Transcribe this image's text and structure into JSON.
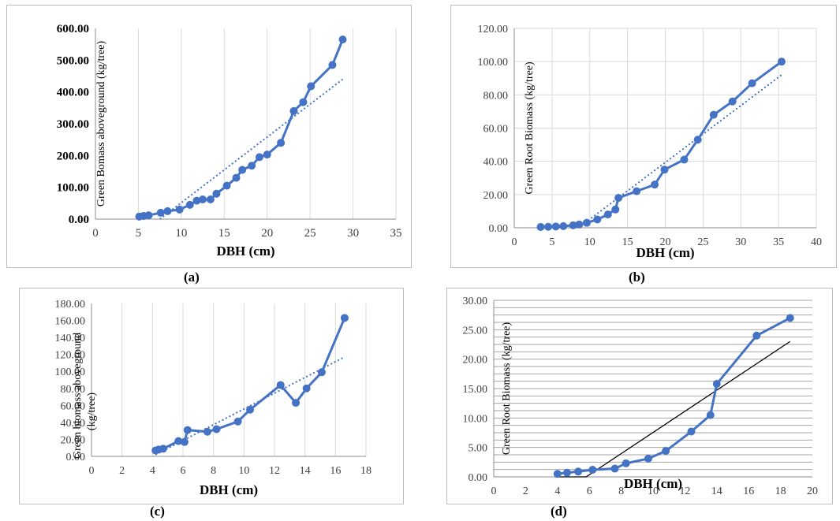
{
  "chart_data": [
    {
      "type": "scatter",
      "caption": "(a)",
      "xlabel": "DBH (cm)",
      "ylabel": "Green Bomass aboveground (kg/tree)",
      "xlim": [
        0,
        35
      ],
      "ylim": [
        0,
        600
      ],
      "xticks": [
        "0",
        "5",
        "10",
        "15",
        "20",
        "25",
        "30",
        "35"
      ],
      "yticks": [
        "0.00",
        "100.00",
        "200.00",
        "300.00",
        "400.00",
        "500.00",
        "600.00"
      ],
      "grid": "vertical",
      "series": [
        {
          "x": [
            5.1,
            5.6,
            6.2,
            7.6,
            8.4,
            9.8,
            11.0,
            11.8,
            12.5,
            13.4,
            14.1,
            15.3,
            16.4,
            17.1,
            18.2,
            19.1,
            20.0,
            21.6,
            23.1,
            24.2,
            25.1,
            27.6,
            28.8
          ],
          "y": [
            8,
            10,
            12,
            20,
            25,
            30,
            45,
            58,
            62,
            62,
            80,
            105,
            130,
            155,
            168,
            195,
            203,
            240,
            340,
            368,
            418,
            485,
            565
          ]
        }
      ],
      "trendline": {
        "x": [
          7.5,
          28.8
        ],
        "y": [
          0,
          440
        ]
      }
    },
    {
      "type": "scatter",
      "caption": "(b)",
      "xlabel": "DBH (cm)",
      "ylabel": "Green Root Biomass (kg/tree)",
      "xlim": [
        0,
        40
      ],
      "ylim": [
        0,
        120
      ],
      "xticks": [
        "0",
        "5",
        "10",
        "15",
        "20",
        "25",
        "30",
        "35",
        "40"
      ],
      "yticks": [
        "0.00",
        "20.00",
        "40.00",
        "60.00",
        "80.00",
        "100.00",
        "120.00"
      ],
      "grid": "both",
      "series": [
        {
          "x": [
            3.5,
            4.5,
            5.5,
            6.5,
            7.8,
            8.6,
            9.6,
            11.0,
            12.4,
            13.4,
            13.8,
            16.2,
            18.6,
            19.9,
            22.5,
            24.3,
            26.4,
            28.9,
            31.5,
            35.4
          ],
          "y": [
            0.5,
            0.6,
            0.8,
            1.0,
            1.5,
            2.0,
            3.0,
            5.0,
            8.0,
            11.0,
            18.0,
            22.0,
            26.0,
            35.0,
            41.0,
            53.0,
            68.0,
            76.0,
            87.0,
            100.0
          ]
        }
      ],
      "trendline": {
        "x": [
          8.5,
          35.4
        ],
        "y": [
          0,
          92
        ]
      }
    },
    {
      "type": "scatter",
      "caption": "(c)",
      "xlabel": "DBH (cm)",
      "ylabel_line1": "Green biomass aboveground",
      "ylabel_line2": "(kg/tree)",
      "xlim": [
        0,
        18
      ],
      "ylim": [
        0,
        180
      ],
      "xticks": [
        "0",
        "2",
        "4",
        "6",
        "8",
        "10",
        "12",
        "14",
        "16",
        "18"
      ],
      "yticks": [
        "0.00",
        "20.00",
        "40.00",
        "60.00",
        "80.00",
        "100.00",
        "120.00",
        "140.00",
        "160.00",
        "180.00"
      ],
      "grid": "vertical",
      "series": [
        {
          "x": [
            4.2,
            4.4,
            4.7,
            5.7,
            6.1,
            6.3,
            7.6,
            8.2,
            9.6,
            10.4,
            12.4,
            13.4,
            14.1,
            15.1,
            16.6
          ],
          "y": [
            7,
            8,
            9,
            18,
            17,
            31,
            29,
            32,
            41,
            55,
            84,
            63,
            80,
            99,
            163
          ]
        }
      ],
      "trendline": {
        "x": [
          4.2,
          16.6
        ],
        "y": [
          2,
          117
        ]
      }
    },
    {
      "type": "scatter",
      "caption": "(d)",
      "xlabel": "DBH (cm)",
      "ylabel": "Green Root Biomass (kg/tree)",
      "xlim": [
        0,
        20
      ],
      "ylim": [
        0,
        30
      ],
      "xticks": [
        "0",
        "2",
        "4",
        "6",
        "8",
        "10",
        "12",
        "14",
        "16",
        "18",
        "20"
      ],
      "yticks": [
        "0.00",
        "5.00",
        "10.00",
        "15.00",
        "20.00",
        "25.00",
        "30.00"
      ],
      "grid": "horizontal",
      "series": [
        {
          "x": [
            4.0,
            4.6,
            5.3,
            6.2,
            7.6,
            8.3,
            9.7,
            10.8,
            12.4,
            13.6,
            14.0,
            16.5,
            18.6
          ],
          "y": [
            0.5,
            0.7,
            0.9,
            1.2,
            1.4,
            2.3,
            3.1,
            4.4,
            7.7,
            10.5,
            15.8,
            24.0,
            27.0
          ]
        }
      ],
      "trendline": {
        "x": [
          4.0,
          5.8,
          18.6
        ],
        "y": [
          0,
          0,
          23
        ]
      }
    }
  ]
}
